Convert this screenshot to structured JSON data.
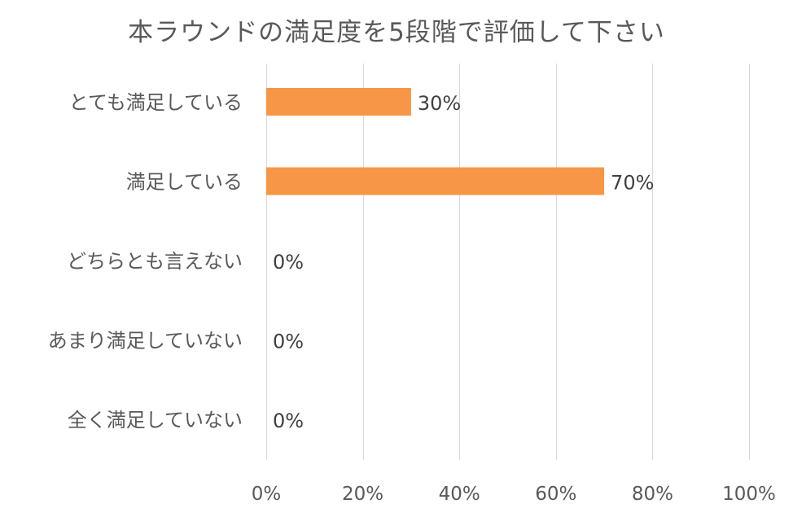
{
  "chart_data": {
    "type": "bar",
    "orientation": "horizontal",
    "title": "本ラウンドの満足度を5段階で評価して下さい",
    "categories": [
      "とても満足している",
      "満足している",
      "どちらとも言えない",
      "あまり満足していない",
      "全く満足していない"
    ],
    "values": [
      30,
      70,
      0,
      0,
      0
    ],
    "data_labels": [
      "30%",
      "70%",
      "0%",
      "0%",
      "0%"
    ],
    "xlim": [
      0,
      100
    ],
    "x_ticks": [
      0,
      20,
      40,
      60,
      80,
      100
    ],
    "x_tick_labels": [
      "0%",
      "20%",
      "40%",
      "60%",
      "80%",
      "100%"
    ],
    "grid": true,
    "legend": "none",
    "bar_color": "#F79646",
    "grid_color": "#D9D9D9",
    "text_color": "#595959"
  }
}
